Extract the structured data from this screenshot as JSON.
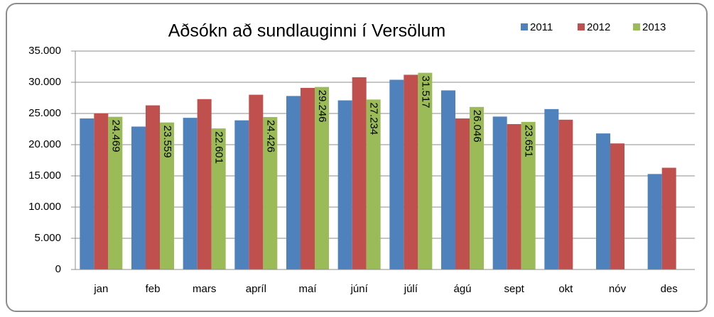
{
  "chart_data": {
    "type": "bar",
    "title": "Aðsókn að sundlauginni í Versölum",
    "categories": [
      "jan",
      "feb",
      "mars",
      "apríl",
      "maí",
      "júní",
      "júlí",
      "ágú",
      "sept",
      "okt",
      "nóv",
      "des"
    ],
    "series": [
      {
        "name": "2011",
        "color": "#4f81bd",
        "values": [
          24200,
          22900,
          24300,
          23900,
          27800,
          27100,
          30400,
          28700,
          24500,
          25700,
          21800,
          15300
        ]
      },
      {
        "name": "2012",
        "color": "#c0504d",
        "values": [
          25000,
          26300,
          27300,
          28000,
          29100,
          30800,
          31200,
          24200,
          23300,
          24000,
          20200,
          16300
        ]
      },
      {
        "name": "2013",
        "color": "#9bbb59",
        "values": [
          24469,
          23559,
          22601,
          24426,
          29246,
          27234,
          31517,
          26046,
          23651,
          null,
          null,
          null
        ],
        "value_labels": [
          "24.469",
          "23.559",
          "22.601",
          "24.426",
          "29.246",
          "27.234",
          "31.517",
          "26.046",
          "23.651",
          null,
          null,
          null
        ]
      }
    ],
    "ylim": [
      0,
      35000
    ],
    "yticks": [
      0,
      {
        "value": 5000,
        "label": "5.000"
      },
      {
        "value": 10000,
        "label": "10.000"
      },
      {
        "value": 15000,
        "label": "15.000"
      },
      {
        "value": 20000,
        "label": "20.000"
      },
      {
        "value": 25000,
        "label": "25.000"
      },
      {
        "value": 30000,
        "label": "30.000"
      },
      {
        "value": 35000,
        "label": "35.000"
      }
    ],
    "grid": true,
    "legend": "top-right"
  }
}
